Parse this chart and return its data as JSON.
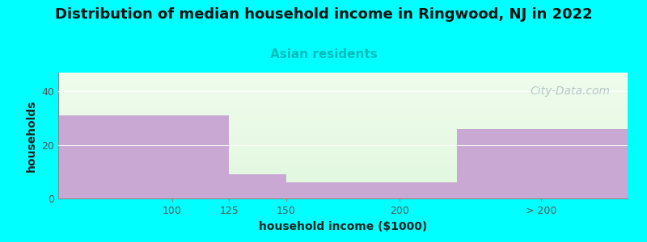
{
  "title": "Distribution of median household income in Ringwood, NJ in 2022",
  "subtitle": "Asian residents",
  "xlabel": "household income ($1000)",
  "ylabel": "households",
  "background_color": "#00FFFF",
  "bar_color": "#C9A8D4",
  "watermark": "City-Data.com",
  "bars": [
    {
      "x_left": 50,
      "x_right": 125,
      "height": 31
    },
    {
      "x_left": 125,
      "x_right": 150,
      "height": 9
    },
    {
      "x_left": 150,
      "x_right": 225,
      "height": 6
    },
    {
      "x_left": 225,
      "x_right": 300,
      "height": 26
    }
  ],
  "xtick_positions": [
    100,
    125,
    150,
    200,
    262
  ],
  "xtick_labels": [
    "100",
    "125",
    "150",
    "200",
    "> 200"
  ],
  "ylim": [
    0,
    47
  ],
  "yticks": [
    0,
    20,
    40
  ],
  "xlim": [
    50,
    300
  ],
  "title_fontsize": 13,
  "subtitle_fontsize": 11,
  "subtitle_color": "#00BBBB",
  "axis_label_fontsize": 10,
  "tick_fontsize": 9,
  "watermark_color": "#AABFBF",
  "watermark_fontsize": 10,
  "plot_bg_color_top": "#f2faf0",
  "plot_bg_color_bottom": "#e0f5e0"
}
